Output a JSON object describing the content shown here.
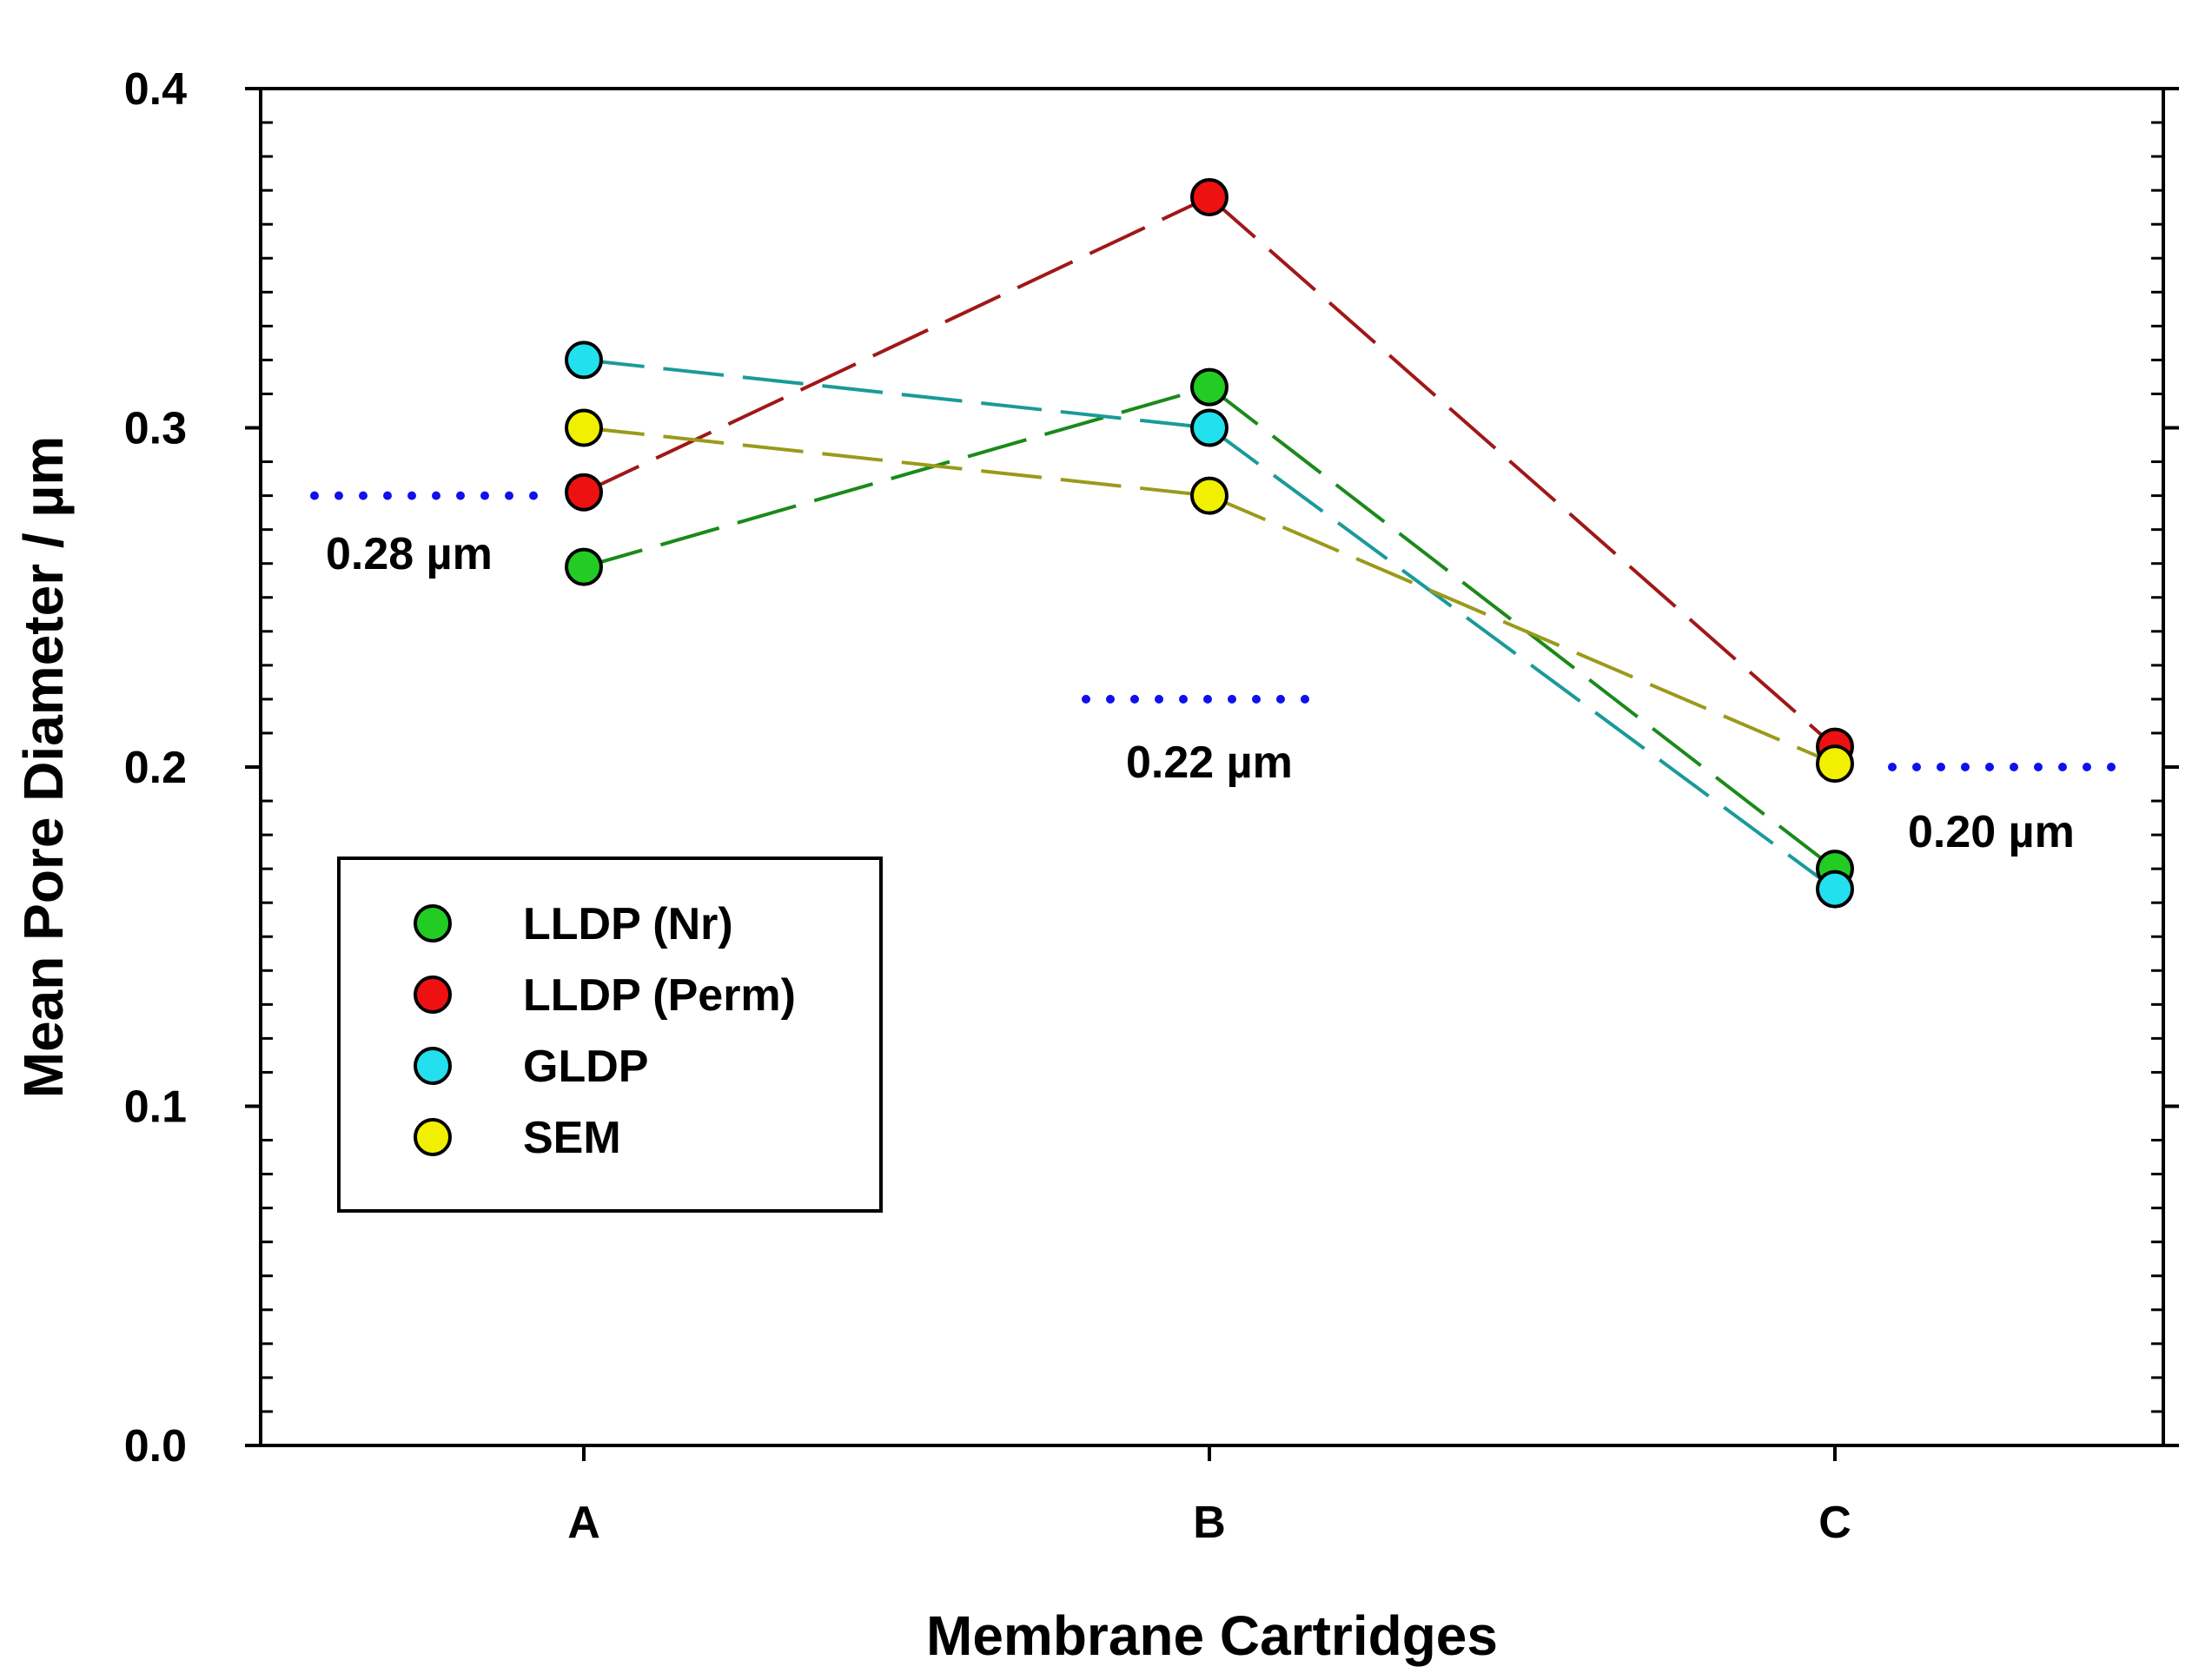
{
  "chart_data": {
    "type": "line",
    "title": "",
    "xlabel": "Membrane Cartridges",
    "ylabel": "Mean Pore Diameter / µm",
    "categories": [
      "A",
      "B",
      "C"
    ],
    "ylim": [
      0.0,
      0.4
    ],
    "yticks": [
      "0.0",
      "0.1",
      "0.2",
      "0.3",
      "0.4"
    ],
    "series": [
      {
        "name": "LLDP (Nr)",
        "marker_color": "#22cc22",
        "line_color": "#1a8a1a",
        "values": [
          0.259,
          0.312,
          0.17
        ]
      },
      {
        "name": "LLDP (Perm)",
        "marker_color": "#ee1111",
        "line_color": "#a01818",
        "values": [
          0.281,
          0.368,
          0.206
        ]
      },
      {
        "name": "GLDP",
        "marker_color": "#22e0ee",
        "line_color": "#1a9a9a",
        "values": [
          0.32,
          0.3,
          0.164
        ]
      },
      {
        "name": "SEM",
        "marker_color": "#f0f000",
        "line_color": "#9a9a1a",
        "values": [
          0.3,
          0.28,
          0.201
        ]
      }
    ],
    "reference_lines": [
      {
        "category": "A",
        "value": 0.28,
        "label": "0.28 µm",
        "color": "#1010ee"
      },
      {
        "category": "B",
        "value": 0.22,
        "label": "0.22 µm",
        "color": "#1010ee"
      },
      {
        "category": "C",
        "value": 0.2,
        "label": "0.20 µm",
        "color": "#1010ee"
      }
    ],
    "legend": {
      "position": "lower-left",
      "entries": [
        "LLDP (Nr)",
        "LLDP (Perm)",
        "GLDP",
        "SEM"
      ]
    }
  }
}
